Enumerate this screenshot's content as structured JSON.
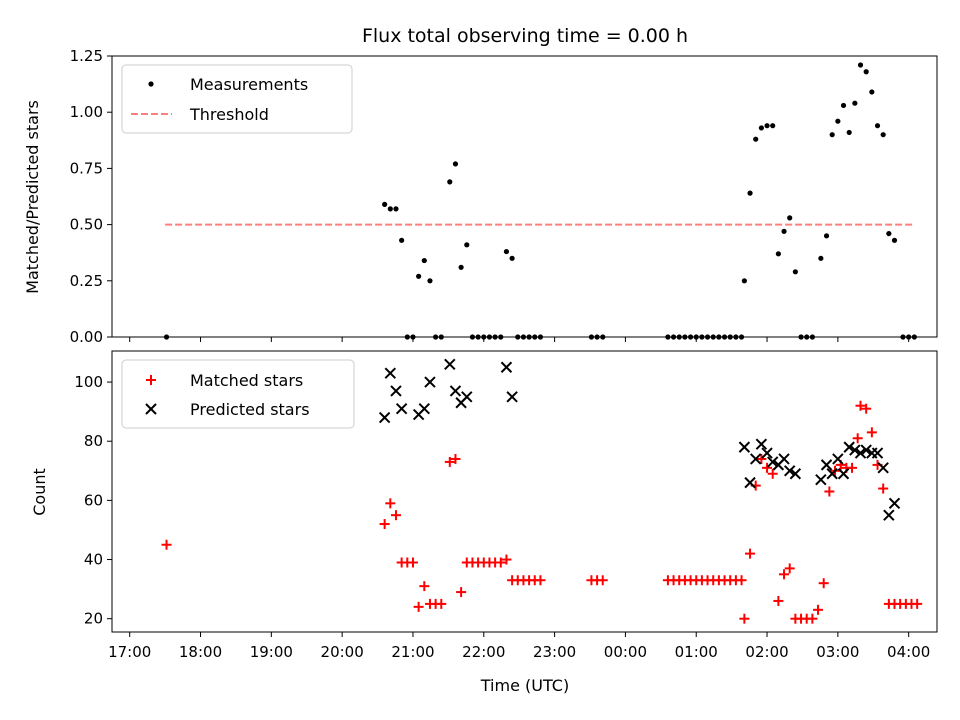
{
  "chart_data": [
    {
      "type": "scatter",
      "title": "Flux total observing time = 0.00 h",
      "xlabel": "",
      "ylabel": "Matched/Predicted stars",
      "xlim": [
        -0.25,
        11.4
      ],
      "ylim": [
        0,
        1.25
      ],
      "yticks": [
        0,
        0.25,
        0.5,
        0.75,
        1.0,
        1.25
      ],
      "ytick_labels": [
        "0.00",
        "0.25",
        "0.50",
        "0.75",
        "1.00",
        "1.25"
      ],
      "legend": [
        "Measurements",
        "Threshold"
      ],
      "legend_position": "top-left",
      "threshold": {
        "name": "Threshold",
        "value": 0.5,
        "x_range": [
          0.5,
          11.08
        ],
        "color": "#ff7f7f"
      },
      "series": [
        {
          "name": "Measurements",
          "marker": "dot",
          "color": "#000000",
          "points": [
            [
              0.52,
              0
            ],
            [
              3.6,
              0.59
            ],
            [
              3.68,
              0.57
            ],
            [
              3.76,
              0.57
            ],
            [
              3.84,
              0.43
            ],
            [
              3.92,
              0
            ],
            [
              4.0,
              0
            ],
            [
              4.08,
              0.27
            ],
            [
              4.16,
              0.34
            ],
            [
              4.24,
              0.25
            ],
            [
              4.32,
              0
            ],
            [
              4.4,
              0
            ],
            [
              4.52,
              0.69
            ],
            [
              4.6,
              0.77
            ],
            [
              4.68,
              0.31
            ],
            [
              4.76,
              0.41
            ],
            [
              4.84,
              0
            ],
            [
              4.92,
              0
            ],
            [
              5.0,
              0
            ],
            [
              5.08,
              0
            ],
            [
              5.16,
              0
            ],
            [
              5.24,
              0
            ],
            [
              5.32,
              0.38
            ],
            [
              5.4,
              0.35
            ],
            [
              5.48,
              0
            ],
            [
              5.56,
              0
            ],
            [
              5.64,
              0
            ],
            [
              5.72,
              0
            ],
            [
              5.8,
              0
            ],
            [
              6.52,
              0
            ],
            [
              6.6,
              0
            ],
            [
              6.68,
              0
            ],
            [
              7.6,
              0
            ],
            [
              7.68,
              0
            ],
            [
              7.76,
              0
            ],
            [
              7.84,
              0
            ],
            [
              7.92,
              0
            ],
            [
              8.0,
              0
            ],
            [
              8.08,
              0
            ],
            [
              8.16,
              0
            ],
            [
              8.24,
              0
            ],
            [
              8.32,
              0
            ],
            [
              8.4,
              0
            ],
            [
              8.48,
              0
            ],
            [
              8.56,
              0
            ],
            [
              8.64,
              0
            ],
            [
              8.68,
              0.25
            ],
            [
              8.76,
              0.64
            ],
            [
              8.84,
              0.88
            ],
            [
              8.92,
              0.93
            ],
            [
              9.0,
              0.94
            ],
            [
              9.08,
              0.94
            ],
            [
              9.16,
              0.37
            ],
            [
              9.24,
              0.47
            ],
            [
              9.32,
              0.53
            ],
            [
              9.4,
              0.29
            ],
            [
              9.48,
              0
            ],
            [
              9.56,
              0
            ],
            [
              9.64,
              0
            ],
            [
              9.76,
              0.35
            ],
            [
              9.84,
              0.45
            ],
            [
              9.92,
              0.9
            ],
            [
              10.0,
              0.96
            ],
            [
              10.08,
              1.03
            ],
            [
              10.16,
              0.91
            ],
            [
              10.24,
              1.04
            ],
            [
              10.32,
              1.21
            ],
            [
              10.4,
              1.18
            ],
            [
              10.48,
              1.09
            ],
            [
              10.56,
              0.94
            ],
            [
              10.64,
              0.9
            ],
            [
              10.72,
              0.46
            ],
            [
              10.8,
              0.43
            ],
            [
              10.92,
              0
            ],
            [
              11.0,
              0
            ],
            [
              11.08,
              0
            ]
          ]
        }
      ]
    },
    {
      "type": "scatter",
      "title": "",
      "xlabel": "Time (UTC)",
      "ylabel": "Count",
      "xlim": [
        -0.25,
        11.4
      ],
      "ylim": [
        15.5,
        110.5
      ],
      "yticks": [
        20,
        40,
        60,
        80,
        100
      ],
      "ytick_labels": [
        "20",
        "40",
        "60",
        "80",
        "100"
      ],
      "xtick_labels": [
        "17:00",
        "18:00",
        "19:00",
        "20:00",
        "21:00",
        "22:00",
        "23:00",
        "00:00",
        "01:00",
        "02:00",
        "03:00",
        "04:00"
      ],
      "legend": [
        "Matched stars",
        "Predicted stars"
      ],
      "legend_position": "top-left",
      "series": [
        {
          "name": "Matched stars",
          "marker": "plus",
          "color": "#ff0000",
          "points": [
            [
              0.52,
              45
            ],
            [
              3.6,
              52
            ],
            [
              3.68,
              59
            ],
            [
              3.76,
              55
            ],
            [
              3.84,
              39
            ],
            [
              3.92,
              39
            ],
            [
              4.0,
              39
            ],
            [
              4.08,
              24
            ],
            [
              4.16,
              31
            ],
            [
              4.24,
              25
            ],
            [
              4.32,
              25
            ],
            [
              4.4,
              25
            ],
            [
              4.52,
              73
            ],
            [
              4.6,
              74
            ],
            [
              4.68,
              29
            ],
            [
              4.76,
              39
            ],
            [
              4.84,
              39
            ],
            [
              4.92,
              39
            ],
            [
              5.0,
              39
            ],
            [
              5.08,
              39
            ],
            [
              5.16,
              39
            ],
            [
              5.24,
              39
            ],
            [
              5.32,
              40
            ],
            [
              5.4,
              33
            ],
            [
              5.48,
              33
            ],
            [
              5.56,
              33
            ],
            [
              5.64,
              33
            ],
            [
              5.72,
              33
            ],
            [
              5.8,
              33
            ],
            [
              6.52,
              33
            ],
            [
              6.6,
              33
            ],
            [
              6.68,
              33
            ],
            [
              7.6,
              33
            ],
            [
              7.68,
              33
            ],
            [
              7.76,
              33
            ],
            [
              7.84,
              33
            ],
            [
              7.92,
              33
            ],
            [
              8.0,
              33
            ],
            [
              8.08,
              33
            ],
            [
              8.16,
              33
            ],
            [
              8.24,
              33
            ],
            [
              8.32,
              33
            ],
            [
              8.4,
              33
            ],
            [
              8.48,
              33
            ],
            [
              8.56,
              33
            ],
            [
              8.64,
              33
            ],
            [
              8.68,
              20
            ],
            [
              8.76,
              42
            ],
            [
              8.84,
              65
            ],
            [
              8.92,
              74
            ],
            [
              9.0,
              71
            ],
            [
              9.08,
              69
            ],
            [
              9.16,
              26
            ],
            [
              9.24,
              35
            ],
            [
              9.32,
              37
            ],
            [
              9.4,
              20
            ],
            [
              9.48,
              20
            ],
            [
              9.56,
              20
            ],
            [
              9.64,
              20
            ],
            [
              9.72,
              23
            ],
            [
              9.8,
              32
            ],
            [
              9.88,
              63
            ],
            [
              9.96,
              70
            ],
            [
              10.04,
              72
            ],
            [
              10.12,
              71
            ],
            [
              10.2,
              71
            ],
            [
              10.28,
              81
            ],
            [
              10.32,
              92
            ],
            [
              10.4,
              91
            ],
            [
              10.48,
              83
            ],
            [
              10.56,
              72
            ],
            [
              10.64,
              64
            ],
            [
              10.72,
              25
            ],
            [
              10.8,
              25
            ],
            [
              10.88,
              25
            ],
            [
              10.96,
              25
            ],
            [
              11.04,
              25
            ],
            [
              11.12,
              25
            ]
          ]
        },
        {
          "name": "Predicted stars",
          "marker": "x",
          "color": "#000000",
          "points": [
            [
              3.6,
              88
            ],
            [
              3.68,
              103
            ],
            [
              3.76,
              97
            ],
            [
              3.84,
              91
            ],
            [
              4.08,
              89
            ],
            [
              4.16,
              91
            ],
            [
              4.24,
              100
            ],
            [
              4.52,
              106
            ],
            [
              4.6,
              97
            ],
            [
              4.68,
              93
            ],
            [
              4.76,
              95
            ],
            [
              5.32,
              105
            ],
            [
              5.4,
              95
            ],
            [
              8.68,
              78
            ],
            [
              8.76,
              66
            ],
            [
              8.84,
              74
            ],
            [
              8.92,
              79
            ],
            [
              9.0,
              76
            ],
            [
              9.08,
              73
            ],
            [
              9.16,
              72
            ],
            [
              9.24,
              74
            ],
            [
              9.32,
              70
            ],
            [
              9.4,
              69
            ],
            [
              9.76,
              67
            ],
            [
              9.84,
              72
            ],
            [
              9.92,
              69
            ],
            [
              10.0,
              74
            ],
            [
              10.08,
              69
            ],
            [
              10.16,
              78
            ],
            [
              10.24,
              77
            ],
            [
              10.32,
              76
            ],
            [
              10.4,
              77
            ],
            [
              10.48,
              76
            ],
            [
              10.56,
              76
            ],
            [
              10.64,
              71
            ],
            [
              10.72,
              55
            ],
            [
              10.8,
              59
            ]
          ]
        }
      ]
    }
  ]
}
